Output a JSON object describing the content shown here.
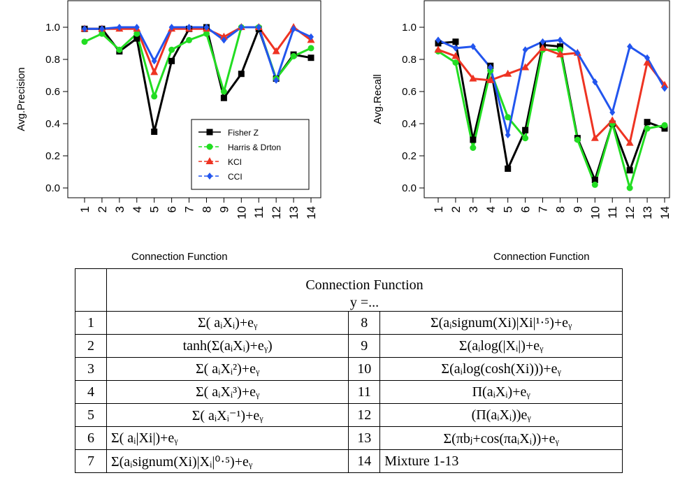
{
  "chart_data": [
    {
      "type": "line",
      "ylabel": "Avg.Precision",
      "xlabel": "",
      "x": [
        1,
        2,
        3,
        4,
        5,
        6,
        7,
        8,
        9,
        10,
        11,
        12,
        13,
        14
      ],
      "xticks": [
        "1",
        "2",
        "3",
        "4",
        "5",
        "6",
        "7",
        "8",
        "9",
        "10",
        "11",
        "12",
        "13",
        "14"
      ],
      "yticks": [
        "0.0",
        "0.2",
        "0.4",
        "0.6",
        "0.8",
        "1.0"
      ],
      "ylim": [
        0,
        1.0
      ],
      "legend": "bottom-right",
      "series": [
        {
          "name": "Fisher Z",
          "color": "#000000",
          "marker": "square",
          "values": [
            0.99,
            0.99,
            0.85,
            0.93,
            0.35,
            0.79,
            0.99,
            1.0,
            0.56,
            0.71,
            0.99,
            0.68,
            0.83,
            0.81
          ]
        },
        {
          "name": "Harris & Drton",
          "color": "#22dd22",
          "marker": "circle",
          "values": [
            0.91,
            0.96,
            0.86,
            0.96,
            0.57,
            0.86,
            0.92,
            0.96,
            0.6,
            1.0,
            1.0,
            0.68,
            0.82,
            0.87
          ]
        },
        {
          "name": "KCI",
          "color": "#ee3322",
          "marker": "triangle",
          "values": [
            0.99,
            0.99,
            0.99,
            0.99,
            0.72,
            0.99,
            0.99,
            0.99,
            0.94,
            1.0,
            1.0,
            0.85,
            1.0,
            0.92
          ]
        },
        {
          "name": "CCI",
          "color": "#2255ee",
          "marker": "diamond",
          "values": [
            0.99,
            0.99,
            1.0,
            1.0,
            0.79,
            1.0,
            1.0,
            1.0,
            0.92,
            1.0,
            1.0,
            0.67,
            0.99,
            0.94
          ]
        }
      ]
    },
    {
      "type": "line",
      "ylabel": "Avg.Recall",
      "xlabel": "",
      "x": [
        1,
        2,
        3,
        4,
        5,
        6,
        7,
        8,
        9,
        10,
        11,
        12,
        13,
        14
      ],
      "xticks": [
        "1",
        "2",
        "3",
        "4",
        "5",
        "6",
        "7",
        "8",
        "9",
        "10",
        "11",
        "12",
        "13",
        "14"
      ],
      "yticks": [
        "0.0",
        "0.2",
        "0.4",
        "0.6",
        "0.8",
        "1.0"
      ],
      "ylim": [
        0,
        1.0
      ],
      "series": [
        {
          "name": "Fisher Z",
          "color": "#000000",
          "marker": "square",
          "values": [
            0.9,
            0.91,
            0.3,
            0.76,
            0.12,
            0.36,
            0.89,
            0.88,
            0.31,
            0.05,
            0.4,
            0.11,
            0.41,
            0.37
          ]
        },
        {
          "name": "Harris & Drton",
          "color": "#22dd22",
          "marker": "circle",
          "values": [
            0.85,
            0.78,
            0.25,
            0.73,
            0.44,
            0.31,
            0.86,
            0.86,
            0.3,
            0.02,
            0.4,
            0.0,
            0.37,
            0.39
          ]
        },
        {
          "name": "KCI",
          "color": "#ee3322",
          "marker": "triangle",
          "values": [
            0.86,
            0.82,
            0.68,
            0.67,
            0.71,
            0.75,
            0.87,
            0.83,
            0.84,
            0.31,
            0.42,
            0.28,
            0.78,
            0.64
          ]
        },
        {
          "name": "CCI",
          "color": "#2255ee",
          "marker": "diamond",
          "values": [
            0.92,
            0.87,
            0.88,
            0.75,
            0.33,
            0.86,
            0.91,
            0.92,
            0.84,
            0.66,
            0.47,
            0.88,
            0.81,
            0.62
          ]
        }
      ]
    }
  ],
  "captions": {
    "left": "Connection Function",
    "right": "Connection Function"
  },
  "table": {
    "title": "Connection Function",
    "subtitle": "y =...",
    "rows": [
      {
        "n1": "1",
        "f1": "Σ( aᵢXᵢ)+eᵧ",
        "n2": "8",
        "f2": "Σ(aᵢsignum(Xi)|Xi|¹·⁵)+eᵧ"
      },
      {
        "n1": "2",
        "f1": "tanh(Σ(aᵢXᵢ)+eᵧ)",
        "n2": "9",
        "f2": "Σ(aᵢlog(|Xᵢ|)+eᵧ"
      },
      {
        "n1": "3",
        "f1": "Σ( aᵢXᵢ²)+eᵧ",
        "n2": "10",
        "f2": "Σ(aᵢlog(cosh(Xi)))+eᵧ"
      },
      {
        "n1": "4",
        "f1": "Σ( aᵢXᵢ³)+eᵧ",
        "n2": "11",
        "f2": "Π(aᵢXᵢ)+eᵧ"
      },
      {
        "n1": "5",
        "f1": "Σ( aᵢXᵢ⁻¹)+eᵧ",
        "n2": "12",
        "f2": "(Π(aᵢXᵢ))eᵧ"
      },
      {
        "n1": "6",
        "f1": "Σ( aᵢ|Xi|)+eᵧ",
        "n2": "13",
        "f2": "Σ(πbⱼ+cos(πaᵢXᵢ))+eᵧ"
      },
      {
        "n1": "7",
        "f1": "Σ(aᵢsignum(Xi)|Xᵢ|⁰·⁵)+eᵧ",
        "n2": "14",
        "f2": "Mixture 1-13"
      }
    ]
  }
}
